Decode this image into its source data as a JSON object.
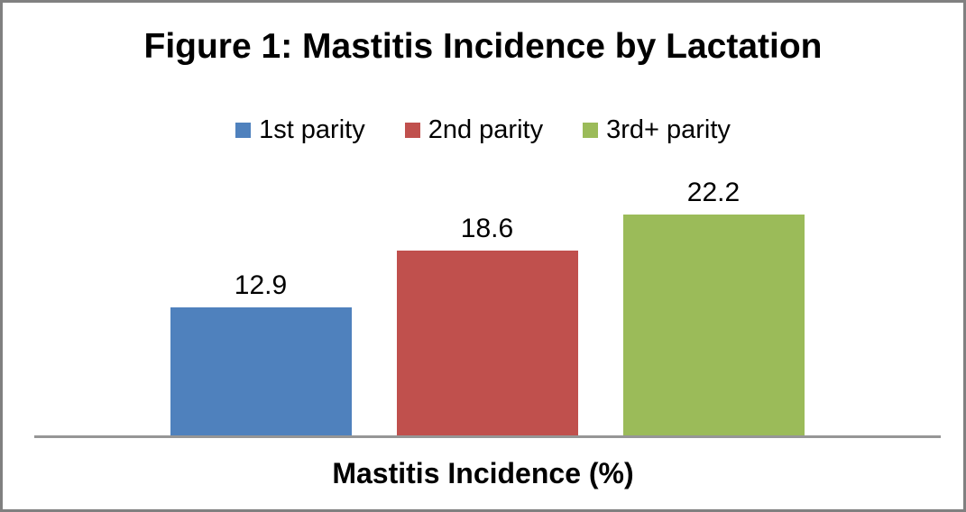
{
  "chart_data": {
    "type": "bar",
    "title": "Figure 1: Mastitis Incidence by Lactation",
    "xlabel": "Mastitis Incidence (%)",
    "ylabel": "",
    "categories": [
      "1st parity",
      "2nd parity",
      "3rd+ parity"
    ],
    "values": [
      12.9,
      18.6,
      22.2
    ],
    "data_labels": [
      "12.9",
      "18.6",
      "22.2"
    ],
    "series_colors": [
      "#4F81BD",
      "#C0504D",
      "#9BBB59"
    ],
    "legend_position": "top",
    "grid": false,
    "ylim": [
      0,
      25
    ],
    "axis_color": "#969696",
    "frame_border_color": "#808080",
    "background_color": "#FFFFFF",
    "text_color": "#000000"
  }
}
